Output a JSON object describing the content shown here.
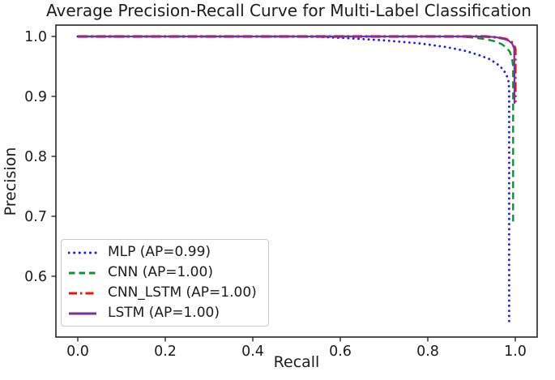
{
  "chart_data": {
    "type": "line",
    "title": "Average Precision-Recall Curve for Multi-Label Classification",
    "xlabel": "Recall",
    "ylabel": "Precision",
    "xlim": [
      -0.05,
      1.05
    ],
    "ylim": [
      0.4986,
      1.0189
    ],
    "x_ticks": [
      0.0,
      0.2,
      0.4,
      0.6,
      0.8,
      1.0
    ],
    "x_tick_labels": [
      "0.0",
      "0.2",
      "0.4",
      "0.6",
      "0.8",
      "1.0"
    ],
    "y_ticks": [
      1.0,
      0.9,
      0.8,
      0.7,
      0.6
    ],
    "y_tick_labels": [
      "1.0",
      "0.9",
      "0.8",
      "0.7",
      "0.6"
    ],
    "grid": false,
    "legend_position": "lower left",
    "frame_color": "#262626",
    "text_color": "#1c1c1c",
    "series": [
      {
        "name": "MLP (AP=0.99)",
        "ap": 0.99,
        "color": "#1a1aff",
        "style": "dotted",
        "points": [
          [
            0.0,
            1.0
          ],
          [
            0.1,
            1.0
          ],
          [
            0.2,
            1.0
          ],
          [
            0.3,
            1.0
          ],
          [
            0.4,
            1.0
          ],
          [
            0.5,
            1.0
          ],
          [
            0.55,
            0.9995
          ],
          [
            0.62,
            0.997
          ],
          [
            0.7,
            0.9935
          ],
          [
            0.78,
            0.9885
          ],
          [
            0.84,
            0.9825
          ],
          [
            0.885,
            0.976
          ],
          [
            0.915,
            0.9695
          ],
          [
            0.94,
            0.9625
          ],
          [
            0.958,
            0.9545
          ],
          [
            0.97,
            0.9465
          ],
          [
            0.979,
            0.9375
          ],
          [
            0.984,
            0.927
          ],
          [
            0.986,
            0.913
          ],
          [
            0.986,
            0.85
          ],
          [
            0.986,
            0.7
          ],
          [
            0.986,
            0.6
          ],
          [
            0.986,
            0.524
          ]
        ]
      },
      {
        "name": "CNN (AP=1.00)",
        "ap": 1.0,
        "color": "#0a9438",
        "style": "dashed",
        "points": [
          [
            0.0,
            1.0
          ],
          [
            0.2,
            1.0
          ],
          [
            0.4,
            1.0
          ],
          [
            0.6,
            1.0
          ],
          [
            0.8,
            1.0
          ],
          [
            0.875,
            1.0
          ],
          [
            0.905,
            0.998
          ],
          [
            0.932,
            0.9955
          ],
          [
            0.953,
            0.992
          ],
          [
            0.968,
            0.9875
          ],
          [
            0.98,
            0.9815
          ],
          [
            0.988,
            0.974
          ],
          [
            0.9925,
            0.964
          ],
          [
            0.995,
            0.95
          ],
          [
            0.995,
            0.85
          ],
          [
            0.995,
            0.686
          ]
        ]
      },
      {
        "name": "CNN_LSTM (AP=1.00)",
        "ap": 1.0,
        "color": "#f21111",
        "style": "dashdot",
        "points": [
          [
            0.0,
            1.0
          ],
          [
            0.25,
            1.0
          ],
          [
            0.5,
            1.0
          ],
          [
            0.75,
            1.0
          ],
          [
            0.93,
            1.0
          ],
          [
            0.958,
            0.9985
          ],
          [
            0.977,
            0.996
          ],
          [
            0.989,
            0.9925
          ],
          [
            0.996,
            0.9875
          ],
          [
            1.0,
            0.979
          ],
          [
            1.0,
            0.93
          ],
          [
            1.0,
            0.89
          ]
        ]
      },
      {
        "name": "LSTM (AP=1.00)",
        "ap": 1.0,
        "color": "#7e2f9e",
        "style": "solid",
        "points": [
          [
            0.0,
            1.0
          ],
          [
            0.25,
            1.0
          ],
          [
            0.5,
            1.0
          ],
          [
            0.75,
            1.0
          ],
          [
            0.925,
            1.0
          ],
          [
            0.953,
            0.999
          ],
          [
            0.972,
            0.9965
          ],
          [
            0.985,
            0.993
          ],
          [
            0.993,
            0.988
          ],
          [
            0.9975,
            0.98
          ],
          [
            0.998,
            0.94
          ],
          [
            0.998,
            0.888
          ]
        ]
      }
    ]
  }
}
